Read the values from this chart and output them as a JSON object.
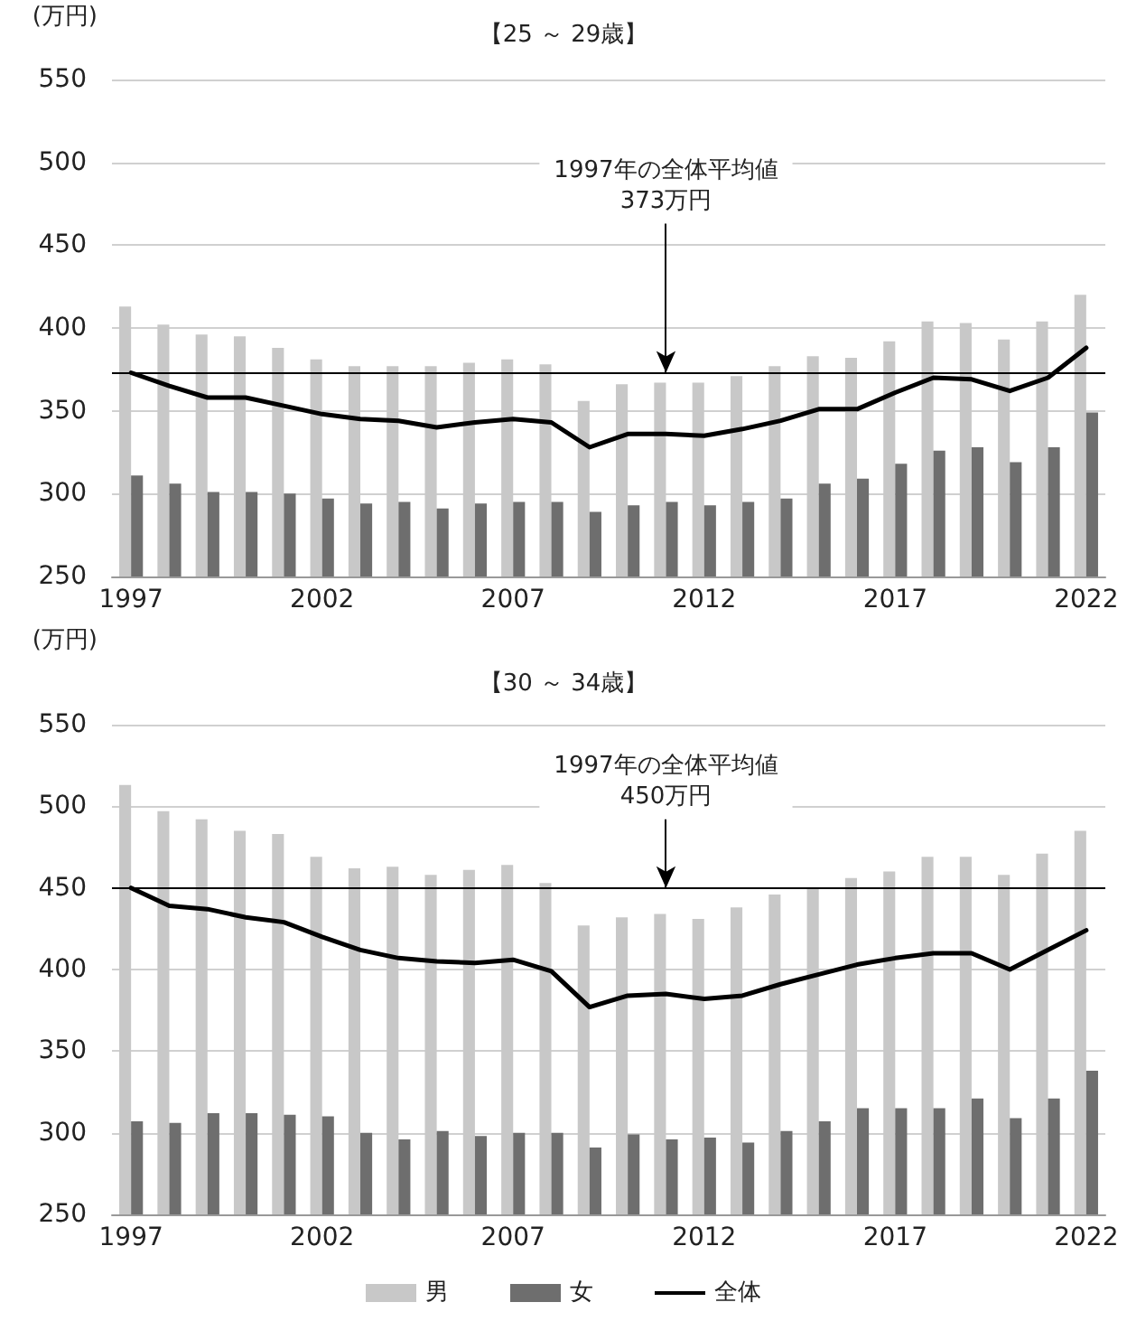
{
  "chart_data": [
    {
      "type": "bar",
      "title": "【25 ～ 29歳】",
      "ylabel": "(万円)",
      "categories": [
        "1997",
        null,
        null,
        null,
        null,
        "2002",
        null,
        null,
        null,
        null,
        "2007",
        null,
        null,
        null,
        null,
        "2012",
        null,
        null,
        null,
        null,
        "2017",
        null,
        null,
        null,
        null,
        "2022"
      ],
      "series": [
        {
          "color": "#c8c8c8",
          "values": [
            413,
            402,
            396,
            395,
            388,
            381,
            377,
            377,
            377,
            379,
            381,
            378,
            356,
            366,
            367,
            367,
            371,
            377,
            383,
            382,
            392,
            404,
            403,
            393,
            404,
            420
          ]
        },
        {
          "color": "#6e6e6e",
          "values": [
            311,
            306,
            301,
            301,
            300,
            297,
            294,
            295,
            291,
            294,
            295,
            295,
            289,
            293,
            295,
            293,
            295,
            297,
            306,
            309,
            318,
            326,
            328,
            319,
            328,
            349
          ]
        },
        {
          "type": "line",
          "color": "#000000",
          "values": [
            373,
            365,
            358,
            358,
            353,
            348,
            345,
            344,
            340,
            343,
            345,
            343,
            328,
            336,
            336,
            335,
            339,
            344,
            351,
            351,
            361,
            370,
            369,
            362,
            370,
            388
          ]
        }
      ],
      "ylim": [
        250,
        550
      ],
      "yticks": [
        250,
        300,
        350,
        400,
        450,
        500,
        550
      ],
      "grid": "y",
      "marker": "none",
      "ref_lines": [
        {
          "axis": "y",
          "value": 373,
          "label": "1997年の全体平均値\n373万円",
          "color": "#000000"
        }
      ]
    },
    {
      "type": "bar",
      "title": "【30 ～ 34歳】",
      "ylabel": "(万円)",
      "categories": [
        "1997",
        null,
        null,
        null,
        null,
        "2002",
        null,
        null,
        null,
        null,
        "2007",
        null,
        null,
        null,
        null,
        "2012",
        null,
        null,
        null,
        null,
        "2017",
        null,
        null,
        null,
        null,
        "2022"
      ],
      "series": [
        {
          "name": "男",
          "color": "#c8c8c8",
          "values": [
            513,
            497,
            492,
            485,
            483,
            469,
            462,
            463,
            458,
            461,
            464,
            453,
            427,
            432,
            434,
            431,
            438,
            446,
            450,
            456,
            460,
            469,
            469,
            458,
            471,
            485
          ]
        },
        {
          "name": "女",
          "color": "#6e6e6e",
          "values": [
            307,
            306,
            312,
            312,
            311,
            310,
            300,
            296,
            301,
            298,
            300,
            300,
            291,
            299,
            296,
            297,
            294,
            301,
            307,
            315,
            315,
            315,
            321,
            309,
            321,
            338
          ]
        },
        {
          "name": "全体",
          "type": "line",
          "color": "#000000",
          "values": [
            450,
            439,
            437,
            432,
            429,
            420,
            412,
            407,
            405,
            404,
            406,
            399,
            377,
            384,
            385,
            382,
            384,
            391,
            397,
            403,
            407,
            410,
            410,
            400,
            412,
            424
          ]
        }
      ],
      "ylim": [
        250,
        550
      ],
      "yticks": [
        250,
        300,
        350,
        400,
        450,
        500,
        550
      ],
      "grid": "y",
      "marker": "none",
      "legend": "bottom",
      "ref_lines": [
        {
          "axis": "y",
          "value": 450,
          "label": "1997年の全体平均値\n450万円",
          "color": "#000000"
        }
      ]
    }
  ]
}
